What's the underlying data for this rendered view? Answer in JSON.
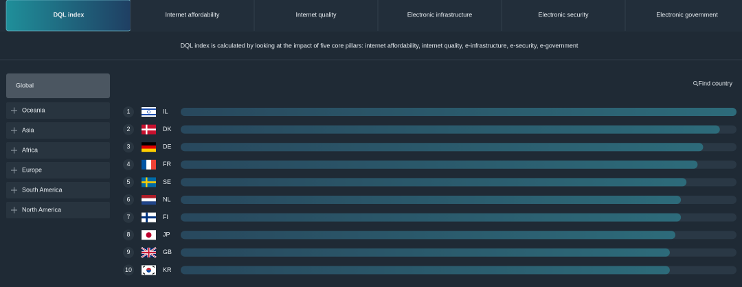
{
  "tabs": [
    "DQL index",
    "Internet affordability",
    "Internet quality",
    "Electronic infrastructure",
    "Electronic security",
    "Electronic government"
  ],
  "description": "DQL index is calculated by looking at the impact of five core pillars: internet affordability, internet quality, e-infrastructure, e-security, e-government",
  "sidebar": {
    "active": "Global",
    "regions": [
      "Oceania",
      "Asia",
      "Africa",
      "Europe",
      "South America",
      "North America"
    ]
  },
  "search": "Find country",
  "ranking": [
    {
      "rank": 1,
      "code": "IL",
      "score": 100
    },
    {
      "rank": 2,
      "code": "DK",
      "score": 97
    },
    {
      "rank": 3,
      "code": "DE",
      "score": 94
    },
    {
      "rank": 4,
      "code": "FR",
      "score": 93
    },
    {
      "rank": 5,
      "code": "SE",
      "score": 91
    },
    {
      "rank": 6,
      "code": "NL",
      "score": 90
    },
    {
      "rank": 7,
      "code": "FI",
      "score": 90
    },
    {
      "rank": 8,
      "code": "JP",
      "score": 89
    },
    {
      "rank": 9,
      "code": "GB",
      "score": 88
    },
    {
      "rank": 10,
      "code": "KR",
      "score": 88
    }
  ]
}
